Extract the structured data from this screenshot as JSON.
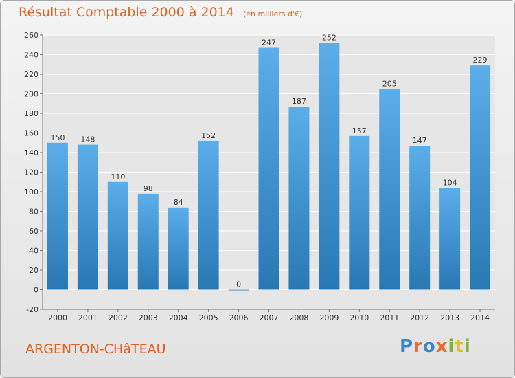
{
  "title": {
    "main": "Résultat Comptable 2000 à 2014",
    "sub": "(en milliers d'€)"
  },
  "city": "ARGENTON-CHâTEAU",
  "brand": {
    "letters": [
      "P",
      "r",
      "o",
      "x",
      "i",
      "t",
      "i"
    ]
  },
  "colors": {
    "bar_top": "#5aaeea",
    "bar_bottom": "#2878b4",
    "title": "#e0601f",
    "grid": "#ffffff"
  },
  "chart_data": {
    "type": "bar",
    "categories": [
      "2000",
      "2001",
      "2002",
      "2003",
      "2004",
      "2005",
      "2006",
      "2007",
      "2008",
      "2009",
      "2010",
      "2011",
      "2012",
      "2013",
      "2014"
    ],
    "values": [
      150,
      148,
      110,
      98,
      84,
      152,
      0,
      247,
      187,
      252,
      157,
      205,
      147,
      104,
      229
    ],
    "ylim": [
      -20,
      260
    ],
    "yticks": [
      -20,
      0,
      20,
      40,
      60,
      80,
      100,
      120,
      140,
      160,
      180,
      200,
      220,
      240,
      260
    ],
    "grid": true
  }
}
